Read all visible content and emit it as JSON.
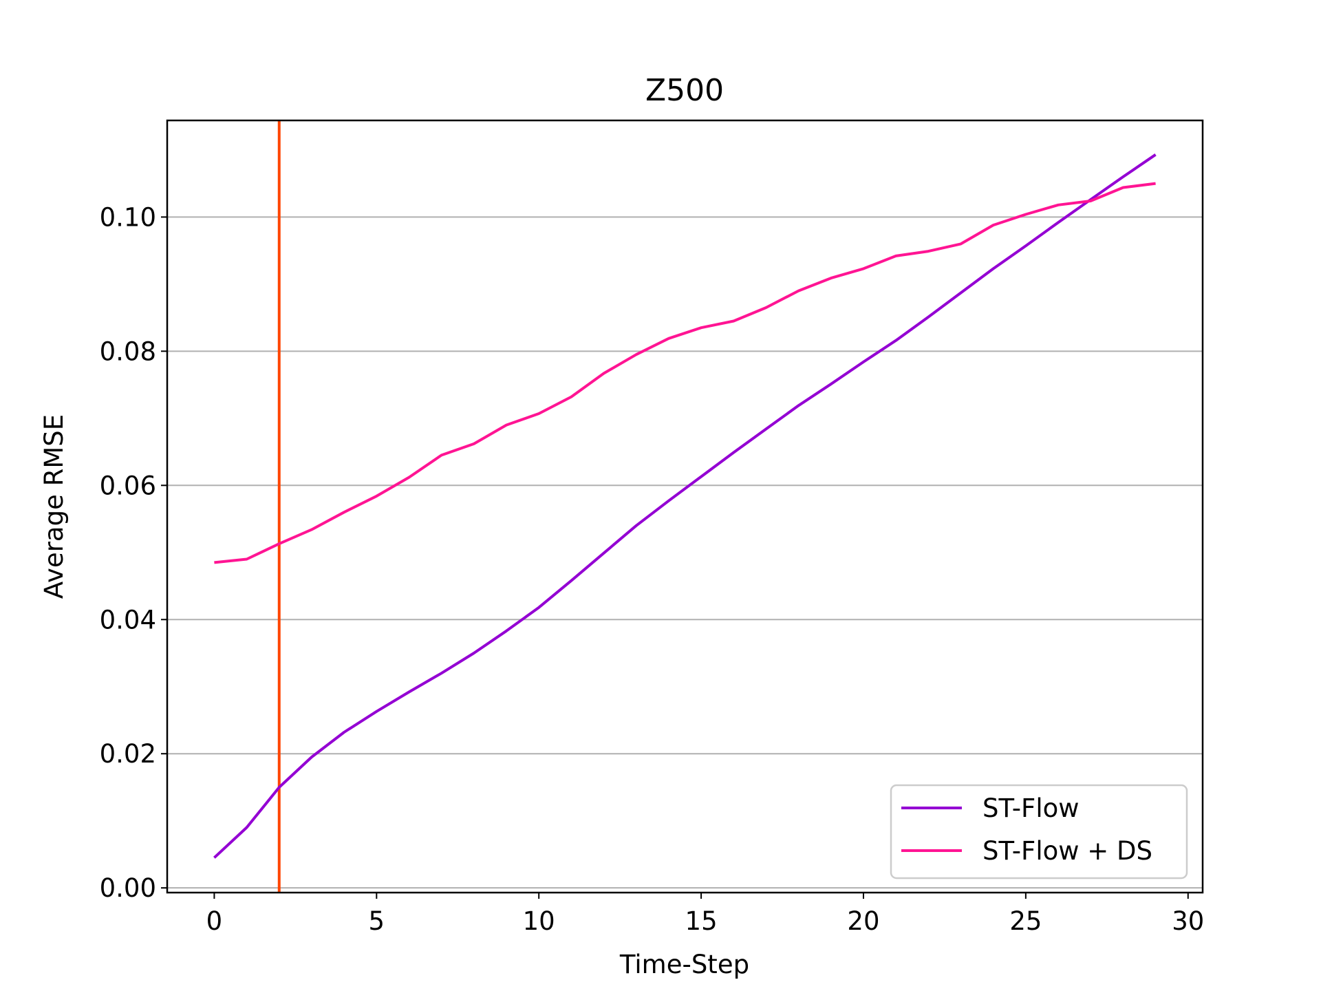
{
  "chart_data": {
    "type": "line",
    "title": "Z500",
    "xlabel": "Time-Step",
    "ylabel": "Average RMSE",
    "xlim": [
      -1.45,
      30.45
    ],
    "ylim": [
      -0.0007,
      0.1144
    ],
    "xticks": [
      0,
      5,
      10,
      15,
      20,
      25,
      30
    ],
    "xtick_labels": [
      "0",
      "5",
      "10",
      "15",
      "20",
      "25",
      "30"
    ],
    "yticks": [
      0.0,
      0.02,
      0.04,
      0.06,
      0.08,
      0.1
    ],
    "ytick_labels": [
      "0.00",
      "0.02",
      "0.04",
      "0.06",
      "0.08",
      "0.10"
    ],
    "grid": "horizontal",
    "legend_position": "lower-right",
    "vline": {
      "x": 2,
      "color": "#ff4500"
    },
    "x": [
      0,
      1,
      2,
      3,
      4,
      5,
      6,
      7,
      8,
      9,
      10,
      11,
      12,
      13,
      14,
      15,
      16,
      17,
      18,
      19,
      20,
      21,
      22,
      23,
      24,
      25,
      26,
      27,
      28,
      29
    ],
    "series": [
      {
        "name": "ST-Flow",
        "color": "#9400d3",
        "values": [
          0.0045,
          0.009,
          0.015,
          0.0195,
          0.0232,
          0.0263,
          0.0292,
          0.032,
          0.035,
          0.0383,
          0.0418,
          0.0458,
          0.0499,
          0.054,
          0.0577,
          0.0613,
          0.0649,
          0.0684,
          0.0719,
          0.0751,
          0.0784,
          0.0816,
          0.0851,
          0.0887,
          0.0923,
          0.0957,
          0.0992,
          0.1026,
          0.106,
          0.1093
        ]
      },
      {
        "name": "ST-Flow + DS",
        "color": "#ff1493",
        "values": [
          0.0485,
          0.049,
          0.0513,
          0.0534,
          0.056,
          0.0584,
          0.0612,
          0.0645,
          0.0662,
          0.069,
          0.0707,
          0.0732,
          0.0767,
          0.0795,
          0.0819,
          0.0835,
          0.0845,
          0.0865,
          0.089,
          0.0909,
          0.0923,
          0.0942,
          0.0949,
          0.096,
          0.0988,
          0.1004,
          0.1018,
          0.1024,
          0.1044,
          0.105
        ]
      }
    ]
  }
}
